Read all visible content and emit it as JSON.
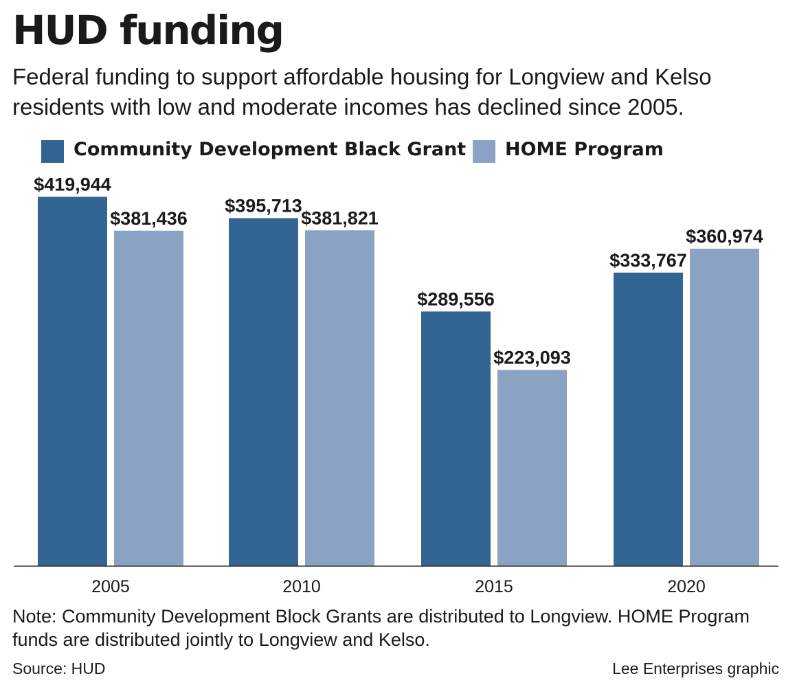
{
  "title": "HUD funding",
  "subtitle": "Federal funding to support affordable housing for Longview and Kelso residents with low and moderate incomes has declined since 2005.",
  "note": "Note: Community Development Block Grants are distributed to Longview. HOME Program funds are distributed jointly to Longview and Kelso.",
  "source": "Source: HUD",
  "credit": "Lee Enterprises graphic",
  "colors": {
    "series_1": "#336593",
    "series_2": "#8aa3c4",
    "axis": "#333333"
  },
  "chart_data": {
    "type": "bar",
    "categories": [
      "2005",
      "2010",
      "2015",
      "2020"
    ],
    "series": [
      {
        "name": "Community Development Black Grant",
        "values": [
          419944,
          395713,
          289556,
          333767
        ],
        "labels": [
          "$419,944",
          "$395,713",
          "$289,556",
          "$333,767"
        ]
      },
      {
        "name": "HOME Program",
        "values": [
          381436,
          381821,
          223093,
          360974
        ],
        "labels": [
          "$381,436",
          "$381,821",
          "$223,093",
          "$360,974"
        ]
      }
    ],
    "ylim": [
      0,
      440000
    ],
    "grid": false,
    "legend": "top"
  }
}
